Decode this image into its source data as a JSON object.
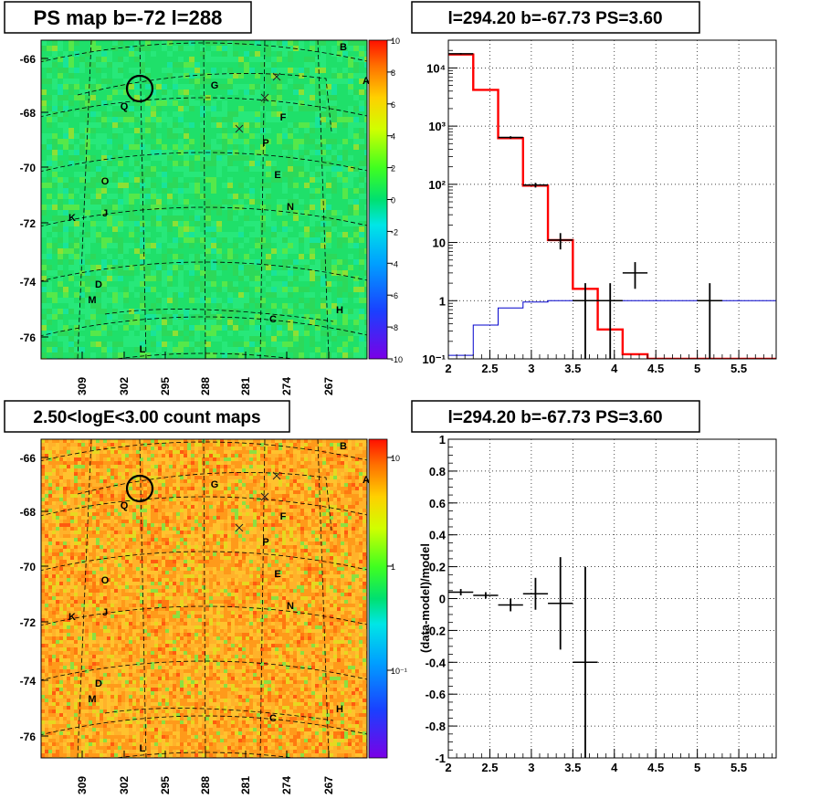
{
  "chart_data": [
    {
      "type": "heatmap",
      "title": "PS map b=-72 l=288",
      "xlabel": "",
      "ylabel": "",
      "x_ticks": [
        "309",
        "302",
        "295",
        "288",
        "281",
        "274",
        "267"
      ],
      "y_ticks": [
        "-66",
        "-68",
        "-70",
        "-72",
        "-74",
        "-76"
      ],
      "colorbar": {
        "min": -10,
        "max": 10,
        "ticks": [
          "10",
          "8",
          "6",
          "4",
          "2",
          "0",
          "-2",
          "-4",
          "-6",
          "-8",
          "-10"
        ]
      },
      "source_labels": [
        "B",
        "A",
        "G",
        "Q",
        "F",
        "P",
        "O",
        "E",
        "K",
        "J",
        "N",
        "D",
        "M",
        "C",
        "H",
        "L"
      ],
      "grid": true
    },
    {
      "type": "line",
      "title": "l=294.20 b=-67.73 PS=3.60",
      "xlabel": "",
      "ylabel": "",
      "x_ticks": [
        "2",
        "2.5",
        "3",
        "3.5",
        "4",
        "4.5",
        "5",
        "5.5"
      ],
      "y_ticks": [
        "10⁻¹",
        "1",
        "10",
        "10²",
        "10³",
        "10⁴"
      ],
      "xlim": [
        2,
        5.95
      ],
      "ylim": [
        0.1,
        30000
      ],
      "yscale": "log",
      "grid": true,
      "bin_edges": [
        2,
        2.3,
        2.6,
        2.9,
        3.2,
        3.5,
        3.8,
        4.1,
        4.4,
        5.95
      ],
      "series": [
        {
          "color": "#ff0000",
          "values": [
            17000,
            4200,
            620,
            95,
            11,
            1.6,
            0.32,
            0.12,
            0.1
          ]
        },
        {
          "color": "#0000cc",
          "values": [
            0.115,
            0.38,
            0.75,
            0.95,
            1.0,
            1.0,
            1.0,
            1.0,
            1.0
          ]
        },
        {
          "color": "#000000",
          "points": [
            {
              "x": 2.15,
              "y": 17500,
              "xerr": 0.15,
              "ylo": 17000,
              "yhi": 18000
            },
            {
              "x": 2.75,
              "y": 640,
              "xerr": 0.15,
              "ylo": 610,
              "yhi": 670
            },
            {
              "x": 3.05,
              "y": 97,
              "xerr": 0.15,
              "ylo": 88,
              "yhi": 106
            },
            {
              "x": 3.35,
              "y": 11,
              "xerr": 0.15,
              "ylo": 7.6,
              "yhi": 14.5
            },
            {
              "x": 3.65,
              "y": 1,
              "xerr": 0.15,
              "ylo": 0.1,
              "yhi": 2
            },
            {
              "x": 3.95,
              "y": 1,
              "xerr": 0.15,
              "ylo": 0.1,
              "yhi": 2
            },
            {
              "x": 4.25,
              "y": 3,
              "xerr": 0.15,
              "ylo": 1.6,
              "yhi": 4.6
            },
            {
              "x": 5.15,
              "y": 1,
              "xerr": 0.15,
              "ylo": 0.1,
              "yhi": 2
            }
          ]
        }
      ]
    },
    {
      "type": "heatmap",
      "title": "2.50<logE<3.00 count maps",
      "xlabel": "",
      "ylabel": "",
      "x_ticks": [
        "309",
        "302",
        "295",
        "288",
        "281",
        "274",
        "267"
      ],
      "y_ticks": [
        "-66",
        "-68",
        "-70",
        "-72",
        "-74",
        "-76"
      ],
      "colorbar": {
        "scale": "log",
        "ticks": [
          "10",
          "1",
          "10⁻¹"
        ]
      },
      "source_labels": [
        "B",
        "A",
        "G",
        "Q",
        "F",
        "P",
        "O",
        "E",
        "K",
        "J",
        "N",
        "D",
        "M",
        "C",
        "H",
        "L"
      ],
      "grid": true
    },
    {
      "type": "scatter",
      "title": "l=294.20 b=-67.73 PS=3.60",
      "xlabel": "",
      "ylabel": "(data-model)/model",
      "x_ticks": [
        "2",
        "2.5",
        "3",
        "3.5",
        "4",
        "4.5",
        "5",
        "5.5"
      ],
      "y_ticks": [
        "-1",
        "-0.8",
        "-0.6",
        "-0.4",
        "-0.2",
        "0",
        "0.2",
        "0.4",
        "0.6",
        "0.8",
        "1"
      ],
      "xlim": [
        2,
        5.95
      ],
      "ylim": [
        -1,
        1
      ],
      "grid": true,
      "points": [
        {
          "x": 2.15,
          "y": 0.04,
          "xerr": 0.15,
          "yerr": 0.02
        },
        {
          "x": 2.45,
          "y": 0.02,
          "xerr": 0.15,
          "yerr": 0.02
        },
        {
          "x": 2.75,
          "y": -0.04,
          "xerr": 0.15,
          "yerr": 0.04
        },
        {
          "x": 3.05,
          "y": 0.03,
          "xerr": 0.15,
          "yerr": 0.1
        },
        {
          "x": 3.35,
          "y": -0.03,
          "xerr": 0.15,
          "yerr": 0.29
        },
        {
          "x": 3.65,
          "y": -0.4,
          "xerr": 0.15,
          "yerr": 0.6
        }
      ]
    }
  ]
}
